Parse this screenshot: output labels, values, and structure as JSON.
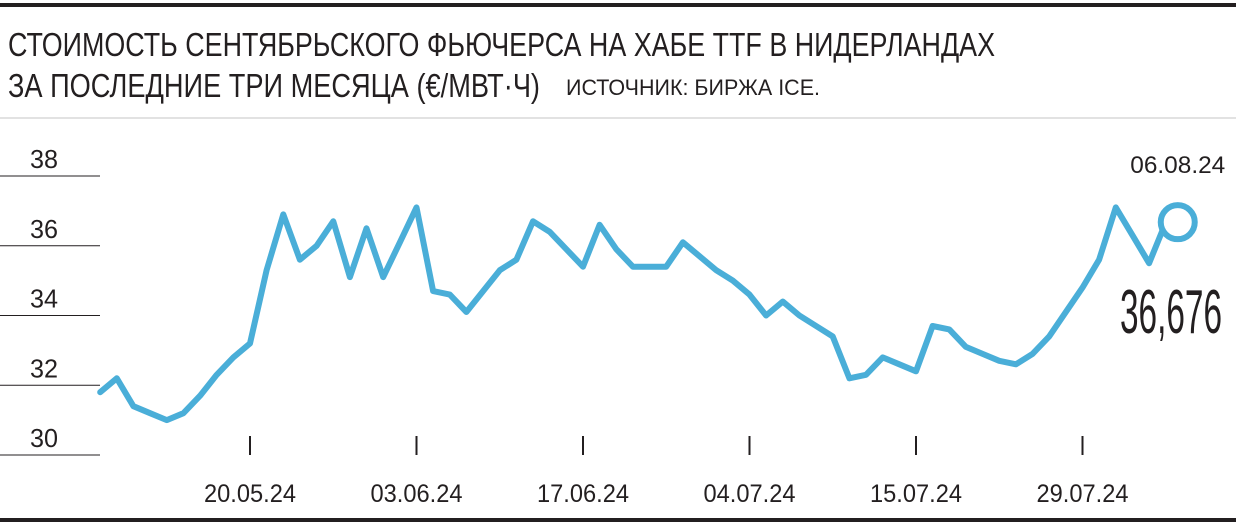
{
  "chart_data": {
    "type": "line",
    "title": [
      "СТОИМОСТЬ СЕНТЯБРЬСКОГО ФЬЮЧЕРСА НА ХАБЕ TTF В НИДЕРЛАНДАХ",
      "ЗА ПОСЛЕДНИЕ ТРИ МЕСЯЦА (€/МВТ·Ч)"
    ],
    "source": "ИСТОЧНИК: БИРЖА ICE.",
    "categories": [
      null,
      null,
      null,
      null,
      null,
      null,
      null,
      null,
      null,
      "20.05.24",
      null,
      null,
      null,
      null,
      null,
      null,
      null,
      null,
      null,
      "03.06.24",
      null,
      null,
      null,
      null,
      null,
      null,
      null,
      null,
      null,
      "17.06.24",
      null,
      null,
      null,
      null,
      null,
      null,
      null,
      null,
      null,
      "04.07.24",
      null,
      null,
      null,
      null,
      null,
      null,
      null,
      null,
      null,
      "15.07.24",
      null,
      null,
      null,
      null,
      null,
      null,
      null,
      null,
      null,
      "29.07.24",
      null,
      null,
      null,
      null,
      "06.08.24"
    ],
    "values": [
      31.8,
      32.2,
      31.4,
      31.2,
      31.0,
      31.2,
      31.7,
      32.3,
      32.8,
      33.2,
      35.3,
      36.9,
      35.6,
      36.0,
      36.7,
      35.1,
      36.5,
      35.1,
      36.1,
      37.1,
      34.7,
      34.6,
      34.1,
      34.7,
      35.3,
      35.6,
      36.7,
      36.4,
      35.9,
      35.4,
      36.6,
      35.9,
      35.4,
      35.4,
      35.4,
      36.1,
      35.7,
      35.3,
      35.0,
      34.6,
      34.0,
      34.4,
      34.0,
      33.7,
      33.4,
      32.2,
      32.3,
      32.8,
      32.6,
      32.4,
      33.7,
      33.6,
      33.1,
      32.9,
      32.7,
      32.6,
      32.9,
      33.4,
      34.1,
      34.8,
      35.6,
      37.1,
      36.3,
      35.5,
      36.676
    ],
    "value_labels": [
      null,
      null,
      null,
      null,
      null,
      null,
      null,
      null,
      null,
      null,
      null,
      null,
      null,
      null,
      null,
      null,
      null,
      null,
      null,
      null,
      null,
      null,
      null,
      null,
      null,
      null,
      null,
      null,
      null,
      null,
      null,
      null,
      null,
      null,
      null,
      null,
      null,
      null,
      null,
      null,
      null,
      null,
      null,
      null,
      null,
      null,
      null,
      null,
      null,
      null,
      null,
      null,
      null,
      null,
      null,
      null,
      null,
      null,
      null,
      null,
      null,
      null,
      null,
      null,
      "36,676"
    ],
    "color": "#4aaed8",
    "ylim": [
      30,
      38
    ],
    "yticks": [
      30,
      32,
      34,
      36,
      38
    ],
    "grid": true,
    "end_marker": true
  }
}
